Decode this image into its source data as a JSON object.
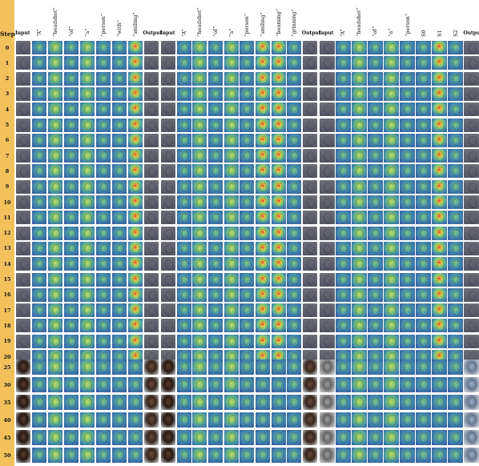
{
  "step_column": {
    "title": "Step",
    "color": "#f3c15c",
    "steps": [
      "0",
      "1",
      "2",
      "3",
      "4",
      "5",
      "6",
      "7",
      "8",
      "9",
      "10",
      "11",
      "12",
      "13",
      "14",
      "15",
      "16",
      "17",
      "18",
      "19",
      "20",
      "25",
      "30",
      "35",
      "40",
      "45",
      "50"
    ]
  },
  "panels": [
    {
      "columns": [
        {
          "label": "Input",
          "rotated": false
        },
        {
          "label": "“A”",
          "rotated": true
        },
        {
          "label": "“headshot”",
          "rotated": true
        },
        {
          "label": "“of”",
          "rotated": true
        },
        {
          "label": "“a”",
          "rotated": true
        },
        {
          "label": "“person”",
          "rotated": true
        },
        {
          "label": "“with”",
          "rotated": true
        },
        {
          "label": "“smiling”",
          "rotated": true
        },
        {
          "label": "Output",
          "rotated": false
        }
      ]
    },
    {
      "columns": [
        {
          "label": "Input",
          "rotated": false
        },
        {
          "label": "“A”",
          "rotated": true
        },
        {
          "label": "“headshot”",
          "rotated": true
        },
        {
          "label": "“of”",
          "rotated": true
        },
        {
          "label": "“a”",
          "rotated": true
        },
        {
          "label": "“person”",
          "rotated": true
        },
        {
          "label": "“smiling”",
          "rotated": true
        },
        {
          "label": "“beaming”",
          "rotated": true
        },
        {
          "label": "“grinning”",
          "rotated": true
        },
        {
          "label": "Output",
          "rotated": false
        }
      ]
    },
    {
      "columns": [
        {
          "label": "Input",
          "rotated": false
        },
        {
          "label": "“A”",
          "rotated": true
        },
        {
          "label": "“headshot”",
          "rotated": true
        },
        {
          "label": "“of”",
          "rotated": true
        },
        {
          "label": "“a”",
          "rotated": true
        },
        {
          "label": "“person”",
          "rotated": true
        },
        {
          "label": "S0",
          "rotated": true
        },
        {
          "label": "S1",
          "rotated": true
        },
        {
          "label": "S2",
          "rotated": true
        },
        {
          "label": "Output",
          "rotated": false
        }
      ]
    }
  ]
}
